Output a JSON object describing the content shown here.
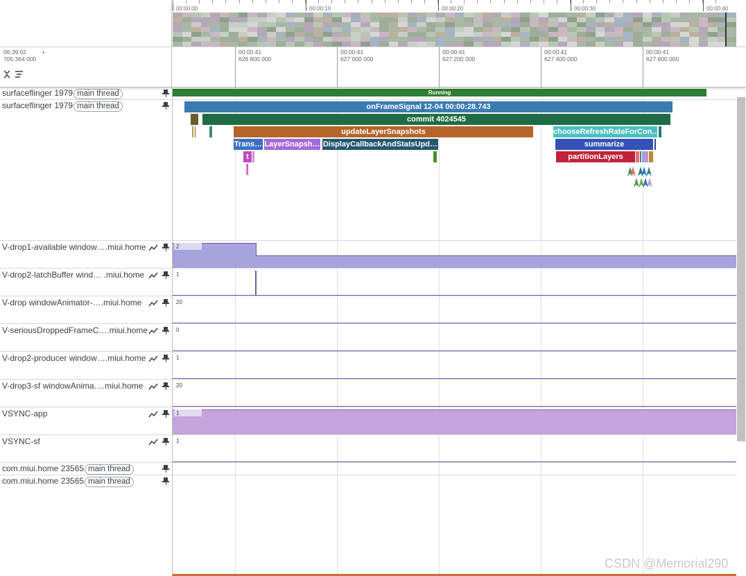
{
  "overview": {
    "labels": [
      "00:00:00",
      "00:00:10",
      "00:00:20",
      "00:00:30",
      "00:00:40"
    ]
  },
  "header": {
    "time_line1": "06:39:02",
    "time_line2": "705 364 000",
    "plus": "+",
    "ticks": [
      {
        "t1": "00:00:41",
        "t2": "626 800 000"
      },
      {
        "t1": "00:00:41",
        "t2": "627 000 000"
      },
      {
        "t1": "00:00:41",
        "t2": "627 200 000"
      },
      {
        "t1": "00:00:41",
        "t2": "627 400 000"
      },
      {
        "t1": "00:00:41",
        "t2": "627 600 000"
      }
    ],
    "collapse_icon": "collapse-all-icon",
    "filter_icon": "filter-list-icon"
  },
  "tracks": {
    "sf_running": {
      "name": "surfaceflinger 1979",
      "tag": "main thread",
      "slice": "Running"
    },
    "sf_main": {
      "name": "surfaceflinger 1979",
      "tag": "main thread"
    },
    "slices": {
      "onFrameSignal": "onFrameSignal 12-04 00:00:28.743",
      "commit": "commit 4024545",
      "updateLayerSnapshots": "updateLayerSnapshots",
      "chooseRefreshRate": "chooseRefreshRateForCon…",
      "trans": "Trans…",
      "layerSnapsh": "LayerSnapsh…",
      "displayCallback": "DisplayCallbackAndStatsUpd…",
      "summarize": "summarize",
      "t": "t",
      "partitionLayers": "partitionLayers"
    },
    "counters": [
      {
        "name": "V-drop1-available window….miui.home",
        "value": "2"
      },
      {
        "name": "V-drop2-latchBuffer wind…  .miui.home",
        "value": "1"
      },
      {
        "name": "V-drop windowAnimator-….miui.home",
        "value": "20"
      },
      {
        "name": "V-seriousDroppedFrameC….miui.home",
        "value": "0"
      },
      {
        "name": "V-drop2-producer window….miui.home",
        "value": "1"
      },
      {
        "name": "V-drop3-sf windowAnima….miui.home",
        "value": "20"
      },
      {
        "name": "VSYNC-app",
        "value": "1"
      },
      {
        "name": "VSYNC-sf",
        "value": "1"
      }
    ],
    "home_main1": {
      "name": "com.miui.home 23565",
      "tag": "main thread"
    },
    "home_main2": {
      "name": "com.miui.home 23565",
      "tag": "main thread"
    }
  },
  "watermark": "CSDN @Memorial290",
  "colors": {
    "running": "#2e7d32",
    "onFrameSignal": "#3a7bb0",
    "commit": "#1f6b45",
    "updateLayerSnapshots": "#b5652a",
    "chooseRefreshRate": "#4bbfbf",
    "trans": "#3a6fc4",
    "layerSnapsh": "#a26ad6",
    "displayCallback": "#24566e",
    "summarize": "#3552b8",
    "partitionLayers": "#c0243a",
    "t": "#c04cc0",
    "counter_fill": "#a7a3dc",
    "vsync_fill": "#c3a4dd"
  }
}
